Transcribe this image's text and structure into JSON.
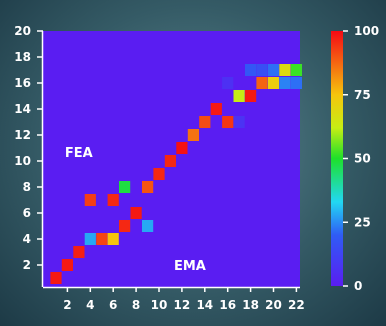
{
  "chart_data": {
    "type": "heatmap",
    "title": "",
    "xlabel": "",
    "ylabel": "",
    "xlim": [
      1,
      23
    ],
    "ylim": [
      0,
      21
    ],
    "x_ticks": [
      2,
      4,
      6,
      8,
      10,
      12,
      14,
      16,
      18,
      20,
      22
    ],
    "y_ticks": [
      2,
      4,
      6,
      8,
      10,
      12,
      14,
      16,
      18,
      20
    ],
    "background_value": 0,
    "annotations": [
      {
        "text": "FEA",
        "x": 3.0,
        "y": 10.3
      },
      {
        "text": "EMA",
        "x": 12.7,
        "y": 1.6
      }
    ],
    "colorbar": {
      "min": 0,
      "max": 100,
      "ticks": [
        0,
        25,
        50,
        75,
        100
      ]
    },
    "cells": [
      {
        "x": 1,
        "y": 1,
        "value": 98
      },
      {
        "x": 2,
        "y": 2,
        "value": 98
      },
      {
        "x": 3,
        "y": 3,
        "value": 97
      },
      {
        "x": 4,
        "y": 4,
        "value": 28
      },
      {
        "x": 5,
        "y": 4,
        "value": 92
      },
      {
        "x": 6,
        "y": 4,
        "value": 75
      },
      {
        "x": 7,
        "y": 5,
        "value": 96
      },
      {
        "x": 8,
        "y": 6,
        "value": 98
      },
      {
        "x": 9,
        "y": 5,
        "value": 28
      },
      {
        "x": 4,
        "y": 7,
        "value": 93
      },
      {
        "x": 6,
        "y": 7,
        "value": 96
      },
      {
        "x": 7,
        "y": 8,
        "value": 48
      },
      {
        "x": 9,
        "y": 8,
        "value": 90
      },
      {
        "x": 10,
        "y": 9,
        "value": 96
      },
      {
        "x": 11,
        "y": 10,
        "value": 96
      },
      {
        "x": 12,
        "y": 11,
        "value": 99
      },
      {
        "x": 13,
        "y": 12,
        "value": 86
      },
      {
        "x": 14,
        "y": 13,
        "value": 91
      },
      {
        "x": 15,
        "y": 14,
        "value": 98
      },
      {
        "x": 16,
        "y": 13,
        "value": 94
      },
      {
        "x": 16,
        "y": 16,
        "value": 6
      },
      {
        "x": 17,
        "y": 13,
        "value": 7
      },
      {
        "x": 17,
        "y": 15,
        "value": 62
      },
      {
        "x": 18,
        "y": 15,
        "value": 98
      },
      {
        "x": 18,
        "y": 17,
        "value": 18
      },
      {
        "x": 19,
        "y": 16,
        "value": 88
      },
      {
        "x": 19,
        "y": 17,
        "value": 16
      },
      {
        "x": 20,
        "y": 16,
        "value": 72
      },
      {
        "x": 20,
        "y": 17,
        "value": 22
      },
      {
        "x": 21,
        "y": 16,
        "value": 24
      },
      {
        "x": 21,
        "y": 17,
        "value": 68
      },
      {
        "x": 22,
        "y": 16,
        "value": 22
      },
      {
        "x": 22,
        "y": 17,
        "value": 52
      }
    ]
  }
}
